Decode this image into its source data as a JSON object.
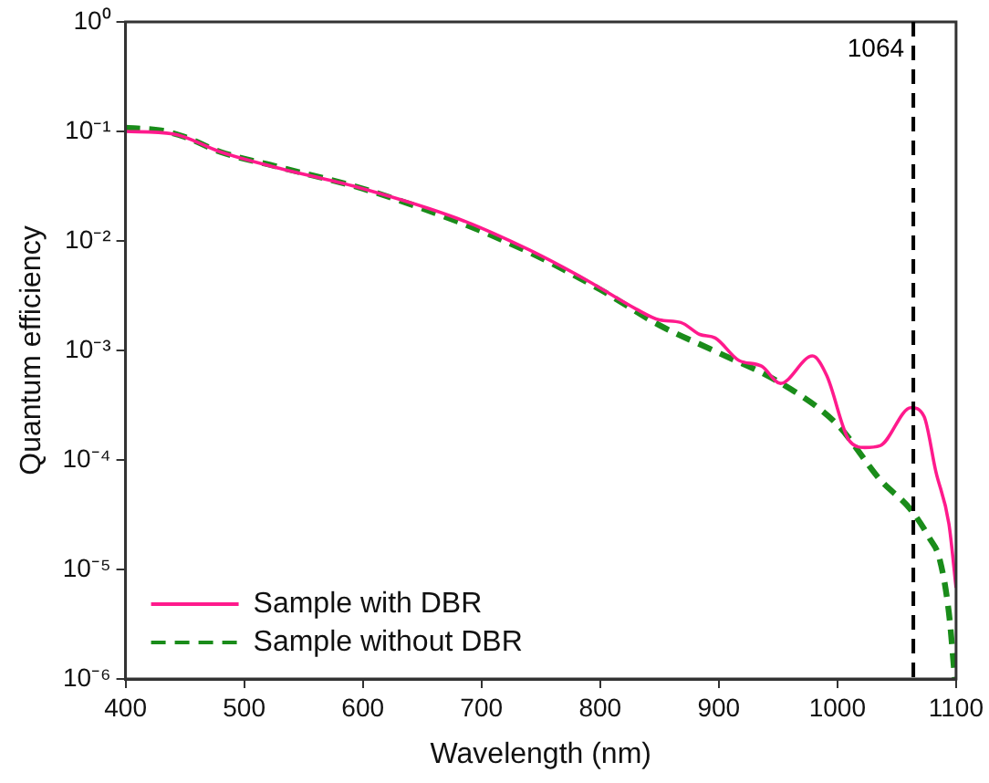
{
  "chart_data": {
    "type": "line",
    "xlabel": "Wavelength (nm)",
    "ylabel": "Quantum efficiency",
    "log": "y",
    "grid": false,
    "legend": "bottom left",
    "marker": "none",
    "xlim": [
      400,
      1100
    ],
    "xticks": [
      400,
      500,
      600,
      700,
      800,
      900,
      1000,
      1100
    ],
    "ylim": [
      1e-06,
      1
    ],
    "yticks": [
      {
        "value": 1,
        "label": "10⁰"
      },
      {
        "value": 0.1,
        "label": "10⁻¹"
      },
      {
        "value": 0.01,
        "label": "10⁻²"
      },
      {
        "value": 0.001,
        "label": "10⁻³"
      },
      {
        "value": 0.0001,
        "label": "10⁻⁴"
      },
      {
        "value": 1e-05,
        "label": "10⁻⁵"
      },
      {
        "value": 1e-06,
        "label": "10⁻⁶"
      }
    ],
    "ref_lines": [
      {
        "axis": "x",
        "value": 1064,
        "label": "1064",
        "color": "#000000",
        "line_style": "dashed"
      }
    ],
    "series": [
      {
        "name": "Sample with DBR",
        "color": "#ff1a8c",
        "line_style": "solid",
        "x": [
          400,
          440,
          480,
          530,
          600,
          680,
          740,
          790,
          830,
          850,
          868,
          884,
          897,
          917,
          936,
          952,
          979,
          991,
          1010,
          1023,
          1036,
          1062,
          1073,
          1083,
          1094,
          1100
        ],
        "values": [
          0.1,
          0.095,
          0.065,
          0.046,
          0.03,
          0.016,
          0.0083,
          0.0043,
          0.0024,
          0.0019,
          0.0018,
          0.0014,
          0.0013,
          0.00081,
          0.00072,
          0.0005,
          0.00089,
          0.00059,
          0.00015,
          0.00013,
          0.000135,
          0.0003,
          0.00025,
          7.8e-05,
          2.6e-05,
          6.8e-06
        ]
      },
      {
        "name": "Sample without DBR",
        "color": "#1a8c1a",
        "line_style": "dashed",
        "x": [
          400,
          430,
          450,
          480,
          530,
          600,
          680,
          740,
          800,
          850,
          900,
          950,
          1000,
          1036,
          1062,
          1078,
          1086,
          1094,
          1099
        ],
        "values": [
          0.108,
          0.102,
          0.089,
          0.065,
          0.047,
          0.03,
          0.015,
          0.0079,
          0.0036,
          0.0017,
          0.00095,
          0.00052,
          0.00021,
          6.6e-05,
          3.5e-05,
          1.9e-05,
          1.26e-05,
          4e-06,
          1e-06
        ]
      }
    ]
  }
}
